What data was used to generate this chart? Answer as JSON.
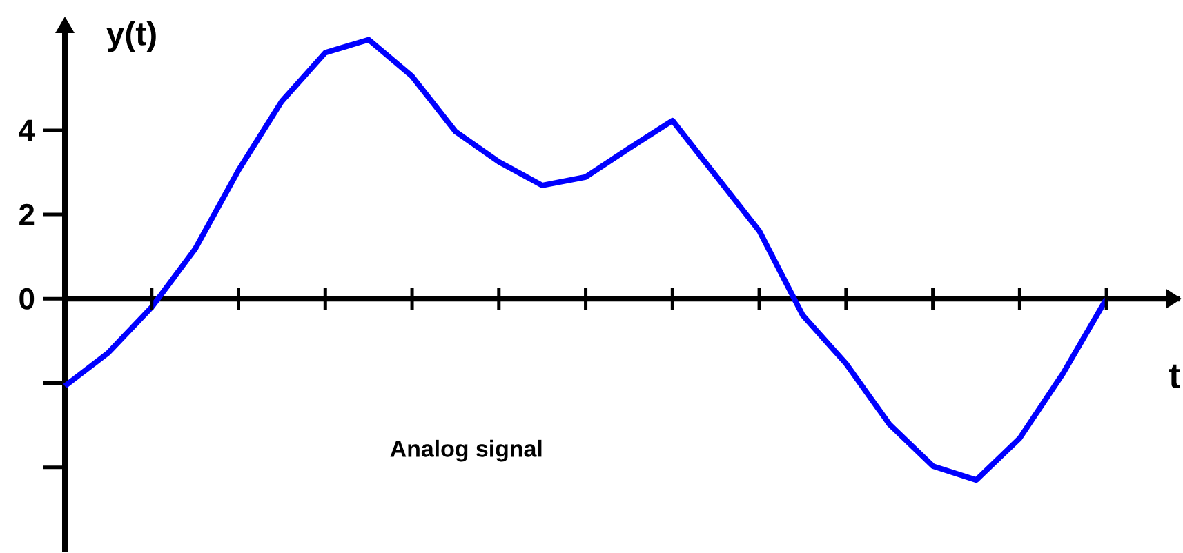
{
  "chart_data": {
    "type": "line",
    "ylabel": "y(t)",
    "xlabel": "t",
    "annotations": [
      "Analog signal"
    ],
    "categories": [
      null,
      null,
      null,
      null,
      null,
      null,
      null,
      null,
      null,
      null,
      null,
      null,
      null,
      null,
      null,
      null,
      null,
      null,
      null,
      null,
      null,
      null,
      null,
      null,
      null
    ],
    "series": [
      {
        "color": "#0000ff",
        "values": [
          -2.07,
          -1.28,
          -0.2,
          1.18,
          3.05,
          4.69,
          5.84,
          6.15,
          5.28,
          3.97,
          3.25,
          2.69,
          2.89,
          3.57,
          4.23,
          2.92,
          1.61,
          -0.39,
          -1.54,
          -2.98,
          -3.97,
          -4.3,
          -3.31,
          -1.77,
          0
        ]
      }
    ],
    "ylim": [
      -6,
      6.6
    ],
    "yticks": [
      {
        "value": -4,
        "label": null
      },
      {
        "value": -2,
        "label": null
      },
      0,
      2,
      4
    ],
    "marker": "none",
    "line_style": "solid"
  }
}
